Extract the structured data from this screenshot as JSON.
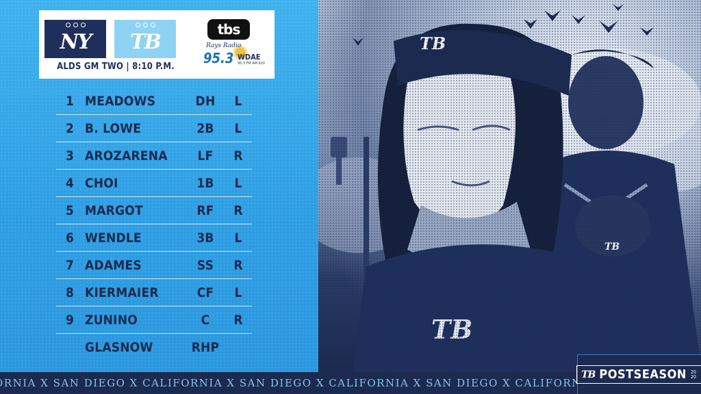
{
  "header": {
    "team_left_logo": "NY",
    "team_right_logo": "TB",
    "game_label": "ALDS GM TWO | 8:10 P.M.",
    "tv_network": "tbs",
    "radio_name": "Rays Radio",
    "radio_freq": "95.3",
    "radio_call": "WDAE",
    "radio_sub": "95.3 FM  AM 620"
  },
  "lineup": [
    {
      "order": "1",
      "name": "MEADOWS",
      "pos": "DH",
      "bats": "L"
    },
    {
      "order": "2",
      "name": "B. LOWE",
      "pos": "2B",
      "bats": "L"
    },
    {
      "order": "3",
      "name": "AROZARENA",
      "pos": "LF",
      "bats": "R"
    },
    {
      "order": "4",
      "name": "CHOI",
      "pos": "1B",
      "bats": "L"
    },
    {
      "order": "5",
      "name": "MARGOT",
      "pos": "RF",
      "bats": "R"
    },
    {
      "order": "6",
      "name": "WENDLE",
      "pos": "3B",
      "bats": "L"
    },
    {
      "order": "7",
      "name": "ADAMES",
      "pos": "SS",
      "bats": "R"
    },
    {
      "order": "8",
      "name": "KIERMAIER",
      "pos": "CF",
      "bats": "L"
    },
    {
      "order": "9",
      "name": "ZUNINO",
      "pos": "C",
      "bats": "R"
    },
    {
      "order": "",
      "name": "GLASNOW",
      "pos": "RHP",
      "bats": ""
    }
  ],
  "banner": {
    "ticker": "ORNIA  X  SAN DIEGO  X  CALIFORNIA  X  SAN DIEGO  X  CALIFORNIA  X  SAN DIEGO  X  CALIFORNIA",
    "badge_mark": "TB",
    "badge_text": "POSTSEASON",
    "badge_year": "2020"
  },
  "art": {
    "cap_mark": "TB",
    "jersey_mark": "TB",
    "second_cap_mark": "TB"
  },
  "colors": {
    "navy": "#1b2a4e",
    "sky": "#3fb2ee",
    "light_blue": "#8fd3f4"
  }
}
